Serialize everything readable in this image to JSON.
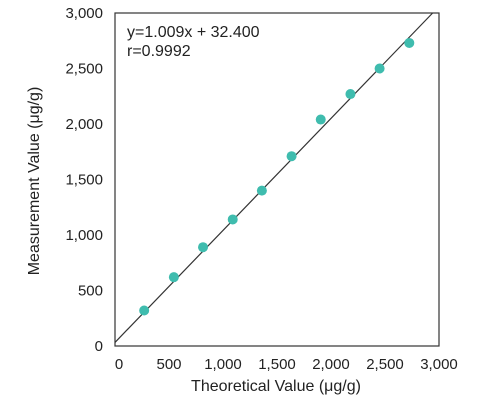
{
  "chart_data": {
    "type": "scatter",
    "title": "",
    "xlabel": "Theoretical Value (μg/g)",
    "ylabel": "Measurement Value (μg/g)",
    "xlim": [
      0,
      3000
    ],
    "ylim": [
      0,
      3000
    ],
    "xticks": [
      "0",
      "500",
      "1,000",
      "1,500",
      "2,000",
      "2,500",
      "3,000"
    ],
    "yticks": [
      "0",
      "500",
      "1,000",
      "1,500",
      "2,000",
      "2,500",
      "3,000"
    ],
    "x_tick_values": [
      0,
      500,
      1000,
      1500,
      2000,
      2500,
      3000
    ],
    "y_tick_values": [
      0,
      500,
      1000,
      1500,
      2000,
      2500,
      3000
    ],
    "grid": false,
    "series": [
      {
        "points": [
          {
            "x": 270,
            "y": 320
          },
          {
            "x": 545,
            "y": 620
          },
          {
            "x": 815,
            "y": 890
          },
          {
            "x": 1090,
            "y": 1140
          },
          {
            "x": 1360,
            "y": 1400
          },
          {
            "x": 1635,
            "y": 1710
          },
          {
            "x": 1905,
            "y": 2040
          },
          {
            "x": 2180,
            "y": 2270
          },
          {
            "x": 2450,
            "y": 2500
          },
          {
            "x": 2725,
            "y": 2730
          }
        ]
      }
    ],
    "fit_line": {
      "slope": 1.009,
      "intercept": 32.4
    },
    "annotations": [
      "y=1.009x + 32.400",
      "r=0.9992"
    ],
    "colors": {
      "points": "#3fbcae",
      "line": "#333333",
      "axes": "#333333"
    }
  }
}
